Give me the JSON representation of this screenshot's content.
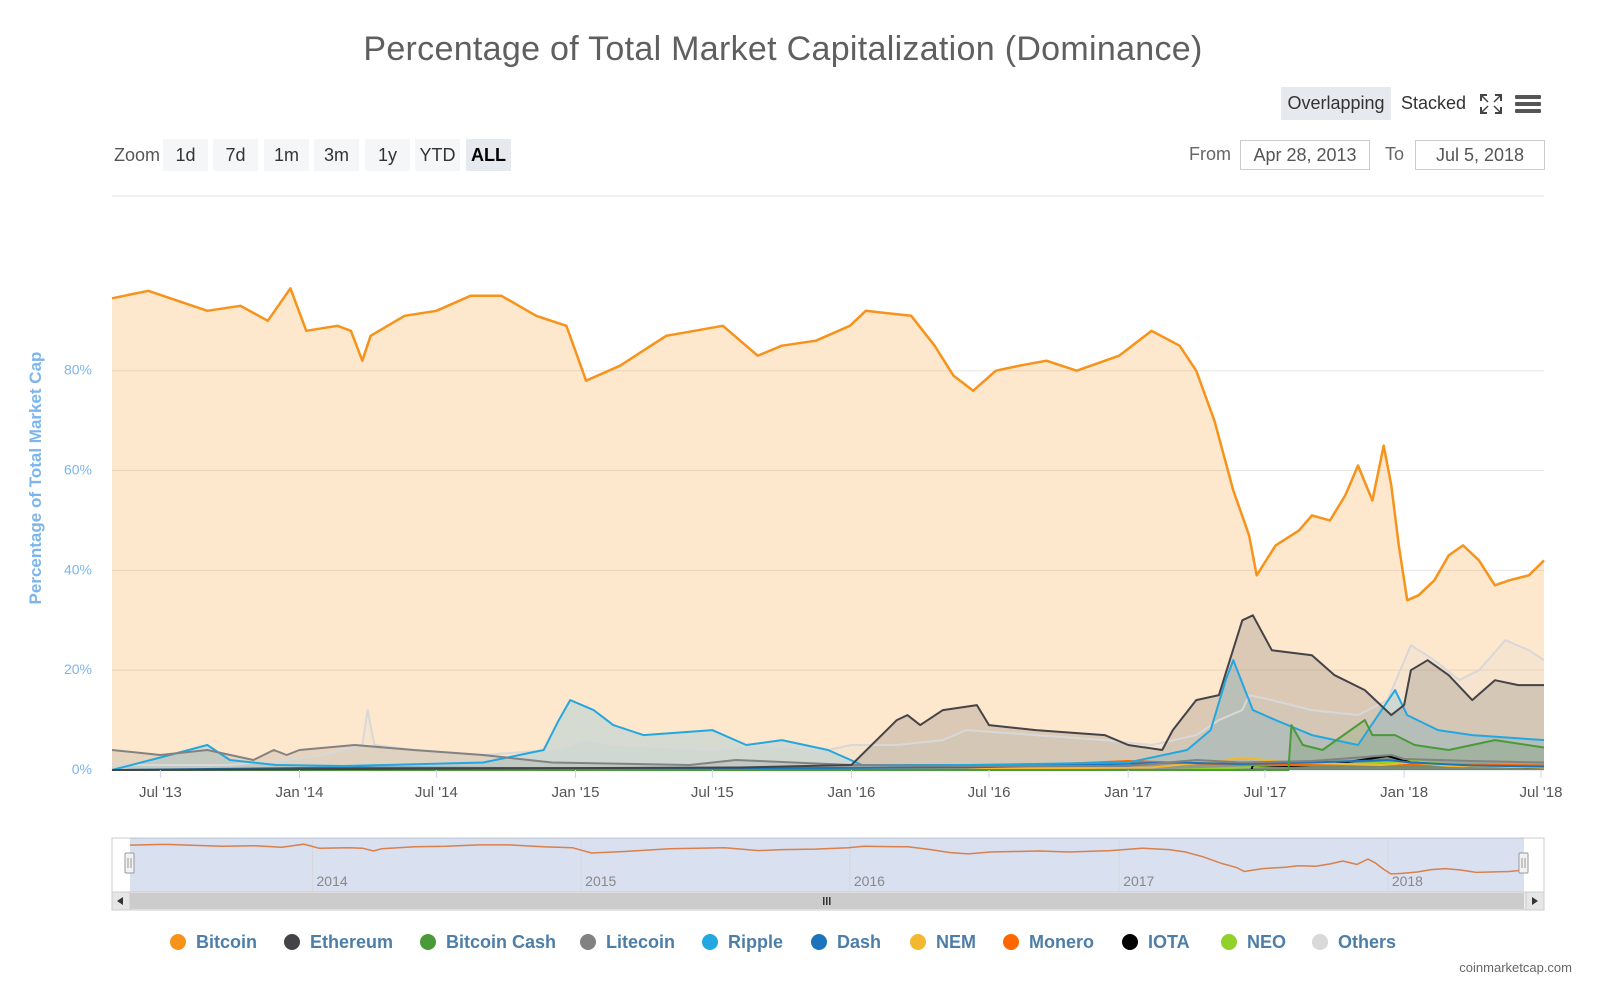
{
  "title": "Percentage of Total Market Capitalization (Dominance)",
  "view_toggle": {
    "overlapping": "Overlapping",
    "stacked": "Stacked",
    "fullscreen_icon": "fullscreen-icon",
    "menu_icon": "hamburger-menu-icon"
  },
  "zoom": {
    "label": "Zoom",
    "buttons": [
      "1d",
      "7d",
      "1m",
      "3m",
      "1y",
      "YTD",
      "ALL"
    ],
    "active": "ALL"
  },
  "range": {
    "from_label": "From",
    "from_value": "Apr 28, 2013",
    "to_label": "To",
    "to_value": "Jul 5, 2018"
  },
  "credits": "coinmarketcap.com",
  "colors": {
    "Bitcoin": "#f7931a",
    "Ethereum": "#434348",
    "Bitcoin Cash": "#4b9a3a",
    "Litecoin": "#828282",
    "Ripple": "#23a7e0",
    "Dash": "#1c75bc",
    "NEM": "#f4b82f",
    "Monero": "#ff6600",
    "IOTA": "#000000",
    "NEO": "#90d12a",
    "Others": "#d8d8d8"
  },
  "chart_data": {
    "type": "area",
    "title": "Percentage of Total Market Capitalization (Dominance)",
    "xlabel": "",
    "ylabel": "Percentage of Total Market Cap",
    "ylim": [
      0,
      100
    ],
    "y_ticks": [
      "0%",
      "20%",
      "40%",
      "60%",
      "80%"
    ],
    "x_ticks": [
      "Jul '13",
      "Jan '14",
      "Jul '14",
      "Jan '15",
      "Jul '15",
      "Jan '16",
      "Jul '16",
      "Jan '17",
      "Jul '17",
      "Jan '18",
      "Jul '18"
    ],
    "grid": true,
    "legend_position": "bottom",
    "navigator": {
      "x_ticks": [
        "2014",
        "2015",
        "2016",
        "2017",
        "2018"
      ]
    },
    "series": [
      {
        "name": "Bitcoin",
        "points": [
          [
            "2013-04-28",
            94.5
          ],
          [
            "2013-06-15",
            96
          ],
          [
            "2013-09-01",
            92
          ],
          [
            "2013-10-15",
            93
          ],
          [
            "2013-11-20",
            90
          ],
          [
            "2013-12-20",
            96.5
          ],
          [
            "2014-01-10",
            88
          ],
          [
            "2014-02-20",
            89
          ],
          [
            "2014-03-10",
            88
          ],
          [
            "2014-03-25",
            82
          ],
          [
            "2014-04-05",
            87
          ],
          [
            "2014-05-20",
            91
          ],
          [
            "2014-07-01",
            92
          ],
          [
            "2014-08-15",
            95
          ],
          [
            "2014-09-25",
            95
          ],
          [
            "2014-11-10",
            91
          ],
          [
            "2014-12-20",
            89
          ],
          [
            "2015-01-15",
            78
          ],
          [
            "2015-03-01",
            81
          ],
          [
            "2015-05-01",
            87
          ],
          [
            "2015-07-15",
            89
          ],
          [
            "2015-08-30",
            83
          ],
          [
            "2015-10-01",
            85
          ],
          [
            "2015-11-15",
            86
          ],
          [
            "2015-12-30",
            89
          ],
          [
            "2016-01-20",
            92
          ],
          [
            "2016-03-20",
            91
          ],
          [
            "2016-04-20",
            85
          ],
          [
            "2016-05-15",
            79
          ],
          [
            "2016-06-10",
            76
          ],
          [
            "2016-07-10",
            80
          ],
          [
            "2016-08-10",
            81
          ],
          [
            "2016-09-15",
            82
          ],
          [
            "2016-10-25",
            80
          ],
          [
            "2016-12-20",
            83
          ],
          [
            "2017-02-01",
            88
          ],
          [
            "2017-03-10",
            85
          ],
          [
            "2017-04-01",
            80
          ],
          [
            "2017-04-25",
            70
          ],
          [
            "2017-05-20",
            56
          ],
          [
            "2017-06-10",
            47
          ],
          [
            "2017-06-20",
            39
          ],
          [
            "2017-07-15",
            45
          ],
          [
            "2017-08-15",
            48
          ],
          [
            "2017-09-01",
            51
          ],
          [
            "2017-09-25",
            50
          ],
          [
            "2017-10-15",
            55
          ],
          [
            "2017-11-01",
            61
          ],
          [
            "2017-11-20",
            54
          ],
          [
            "2017-12-05",
            65
          ],
          [
            "2017-12-15",
            57
          ],
          [
            "2017-12-25",
            45
          ],
          [
            "2018-01-05",
            34
          ],
          [
            "2018-01-20",
            35
          ],
          [
            "2018-02-10",
            38
          ],
          [
            "2018-03-01",
            43
          ],
          [
            "2018-03-20",
            45
          ],
          [
            "2018-04-10",
            42
          ],
          [
            "2018-05-01",
            37
          ],
          [
            "2018-05-20",
            38
          ],
          [
            "2018-06-15",
            39
          ],
          [
            "2018-07-05",
            42
          ]
        ]
      },
      {
        "name": "Ethereum",
        "points": [
          [
            "2013-04-28",
            0
          ],
          [
            "2015-08-07",
            0.5
          ],
          [
            "2016-01-01",
            1
          ],
          [
            "2016-02-10",
            7
          ],
          [
            "2016-03-01",
            10
          ],
          [
            "2016-03-15",
            11
          ],
          [
            "2016-04-01",
            9
          ],
          [
            "2016-05-01",
            12
          ],
          [
            "2016-06-15",
            13
          ],
          [
            "2016-07-01",
            9
          ],
          [
            "2016-09-01",
            8
          ],
          [
            "2016-12-01",
            7
          ],
          [
            "2017-01-01",
            5
          ],
          [
            "2017-02-15",
            4
          ],
          [
            "2017-03-01",
            8
          ],
          [
            "2017-04-01",
            14
          ],
          [
            "2017-05-01",
            15
          ],
          [
            "2017-06-01",
            30
          ],
          [
            "2017-06-15",
            31
          ],
          [
            "2017-07-10",
            24
          ],
          [
            "2017-09-01",
            23
          ],
          [
            "2017-10-01",
            19
          ],
          [
            "2017-11-10",
            16
          ],
          [
            "2017-12-15",
            11
          ],
          [
            "2018-01-01",
            13
          ],
          [
            "2018-01-10",
            20
          ],
          [
            "2018-02-01",
            22
          ],
          [
            "2018-03-01",
            19
          ],
          [
            "2018-04-01",
            14
          ],
          [
            "2018-05-01",
            18
          ],
          [
            "2018-06-01",
            17
          ],
          [
            "2018-07-05",
            17
          ]
        ]
      },
      {
        "name": "Bitcoin Cash",
        "points": [
          [
            "2013-04-28",
            0
          ],
          [
            "2017-08-01",
            0
          ],
          [
            "2017-08-05",
            9
          ],
          [
            "2017-08-20",
            5
          ],
          [
            "2017-09-15",
            4
          ],
          [
            "2017-11-10",
            10
          ],
          [
            "2017-11-20",
            7
          ],
          [
            "2017-12-20",
            7
          ],
          [
            "2018-01-15",
            5
          ],
          [
            "2018-03-01",
            4
          ],
          [
            "2018-05-01",
            6
          ],
          [
            "2018-07-05",
            4.5
          ]
        ]
      },
      {
        "name": "Litecoin",
        "points": [
          [
            "2013-04-28",
            4
          ],
          [
            "2013-07-01",
            3
          ],
          [
            "2013-09-01",
            4
          ],
          [
            "2013-11-01",
            2
          ],
          [
            "2013-11-28",
            4
          ],
          [
            "2013-12-15",
            3
          ],
          [
            "2014-01-01",
            4
          ],
          [
            "2014-03-15",
            5
          ],
          [
            "2014-06-01",
            4
          ],
          [
            "2014-09-01",
            3
          ],
          [
            "2014-12-01",
            1.5
          ],
          [
            "2015-06-01",
            1
          ],
          [
            "2015-08-01",
            2
          ],
          [
            "2016-01-01",
            1
          ],
          [
            "2016-06-01",
            0.8
          ],
          [
            "2017-01-01",
            0.8
          ],
          [
            "2017-04-01",
            2
          ],
          [
            "2017-06-01",
            1.5
          ],
          [
            "2017-09-01",
            1.8
          ],
          [
            "2017-12-15",
            3
          ],
          [
            "2018-01-01",
            2.2
          ],
          [
            "2018-04-01",
            1.8
          ],
          [
            "2018-07-05",
            1.5
          ]
        ]
      },
      {
        "name": "Ripple",
        "points": [
          [
            "2013-04-28",
            0
          ],
          [
            "2013-07-01",
            2.5
          ],
          [
            "2013-09-01",
            5
          ],
          [
            "2013-10-01",
            2
          ],
          [
            "2013-12-01",
            1
          ],
          [
            "2014-03-01",
            0.8
          ],
          [
            "2014-09-01",
            1.5
          ],
          [
            "2014-11-20",
            4
          ],
          [
            "2014-12-10",
            10
          ],
          [
            "2014-12-25",
            14
          ],
          [
            "2015-01-25",
            12
          ],
          [
            "2015-02-20",
            9
          ],
          [
            "2015-04-01",
            7
          ],
          [
            "2015-07-01",
            8
          ],
          [
            "2015-08-15",
            5
          ],
          [
            "2015-10-01",
            6
          ],
          [
            "2015-12-01",
            4
          ],
          [
            "2016-01-15",
            1
          ],
          [
            "2016-06-01",
            1
          ],
          [
            "2017-01-01",
            1.5
          ],
          [
            "2017-03-20",
            4
          ],
          [
            "2017-04-20",
            8
          ],
          [
            "2017-05-10",
            18
          ],
          [
            "2017-05-20",
            22
          ],
          [
            "2017-06-15",
            12
          ],
          [
            "2017-07-15",
            10
          ],
          [
            "2017-09-01",
            7
          ],
          [
            "2017-11-01",
            5
          ],
          [
            "2017-12-20",
            16
          ],
          [
            "2018-01-05",
            11
          ],
          [
            "2018-02-15",
            8
          ],
          [
            "2018-04-01",
            7
          ],
          [
            "2018-07-05",
            6
          ]
        ]
      },
      {
        "name": "Dash",
        "points": [
          [
            "2013-04-28",
            0
          ],
          [
            "2014-03-01",
            0.5
          ],
          [
            "2015-06-01",
            0.3
          ],
          [
            "2016-06-01",
            0.5
          ],
          [
            "2017-03-01",
            1.5
          ],
          [
            "2017-06-01",
            1.2
          ],
          [
            "2017-09-01",
            1.5
          ],
          [
            "2017-12-10",
            2
          ],
          [
            "2018-01-10",
            1.5
          ],
          [
            "2018-04-01",
            0.9
          ],
          [
            "2018-07-05",
            0.7
          ]
        ]
      },
      {
        "name": "NEM",
        "points": [
          [
            "2013-04-28",
            0
          ],
          [
            "2015-04-01",
            0
          ],
          [
            "2016-06-01",
            0.2
          ],
          [
            "2017-02-01",
            0.5
          ],
          [
            "2017-05-01",
            1.8
          ],
          [
            "2017-06-01",
            2.5
          ],
          [
            "2017-08-01",
            1.5
          ],
          [
            "2017-12-01",
            1
          ],
          [
            "2018-01-10",
            1.5
          ],
          [
            "2018-03-01",
            0.8
          ],
          [
            "2018-07-05",
            0.5
          ]
        ]
      },
      {
        "name": "Monero",
        "points": [
          [
            "2013-04-28",
            0
          ],
          [
            "2014-06-01",
            0
          ],
          [
            "2016-01-01",
            0.2
          ],
          [
            "2016-08-01",
            0.8
          ],
          [
            "2016-10-01",
            1.2
          ],
          [
            "2017-01-01",
            1.8
          ],
          [
            "2017-03-01",
            1.5
          ],
          [
            "2017-06-01",
            1
          ],
          [
            "2017-12-01",
            1
          ],
          [
            "2018-04-01",
            1.1
          ],
          [
            "2018-07-05",
            0.9
          ]
        ]
      },
      {
        "name": "IOTA",
        "points": [
          [
            "2013-04-28",
            0
          ],
          [
            "2017-06-13",
            0
          ],
          [
            "2017-06-15",
            1
          ],
          [
            "2017-08-01",
            0.8
          ],
          [
            "2017-10-01",
            1.2
          ],
          [
            "2017-12-10",
            2.8
          ],
          [
            "2018-01-10",
            1.5
          ],
          [
            "2018-04-01",
            0.7
          ],
          [
            "2018-07-05",
            0.5
          ]
        ]
      },
      {
        "name": "NEO",
        "points": [
          [
            "2013-04-28",
            0
          ],
          [
            "2017-03-01",
            0
          ],
          [
            "2017-06-01",
            0.5
          ],
          [
            "2017-08-15",
            1.2
          ],
          [
            "2017-10-01",
            1
          ],
          [
            "2018-01-15",
            1.8
          ],
          [
            "2018-03-01",
            1.1
          ],
          [
            "2018-07-05",
            0.8
          ]
        ]
      },
      {
        "name": "Others",
        "points": [
          [
            "2013-04-28",
            1
          ],
          [
            "2013-10-01",
            1
          ],
          [
            "2013-12-15",
            2
          ],
          [
            "2014-02-01",
            3
          ],
          [
            "2014-03-25",
            5
          ],
          [
            "2014-04-01",
            12
          ],
          [
            "2014-04-10",
            5
          ],
          [
            "2014-06-01",
            4
          ],
          [
            "2014-09-01",
            3
          ],
          [
            "2014-12-01",
            4
          ],
          [
            "2015-01-15",
            6
          ],
          [
            "2015-03-01",
            5
          ],
          [
            "2015-07-01",
            4
          ],
          [
            "2015-09-01",
            5
          ],
          [
            "2015-12-01",
            4
          ],
          [
            "2016-01-01",
            5
          ],
          [
            "2016-03-01",
            5
          ],
          [
            "2016-05-01",
            6
          ],
          [
            "2016-06-01",
            8
          ],
          [
            "2016-09-01",
            7
          ],
          [
            "2016-12-01",
            6
          ],
          [
            "2017-02-01",
            5
          ],
          [
            "2017-04-01",
            7
          ],
          [
            "2017-05-01",
            10
          ],
          [
            "2017-06-01",
            12
          ],
          [
            "2017-06-10",
            15
          ],
          [
            "2017-07-10",
            14
          ],
          [
            "2017-09-01",
            12
          ],
          [
            "2017-11-01",
            11
          ],
          [
            "2017-12-10",
            14
          ],
          [
            "2018-01-10",
            25
          ],
          [
            "2018-02-10",
            22
          ],
          [
            "2018-03-15",
            18
          ],
          [
            "2018-04-10",
            20
          ],
          [
            "2018-05-15",
            26
          ],
          [
            "2018-06-15",
            24
          ],
          [
            "2018-07-05",
            22
          ]
        ]
      }
    ]
  }
}
